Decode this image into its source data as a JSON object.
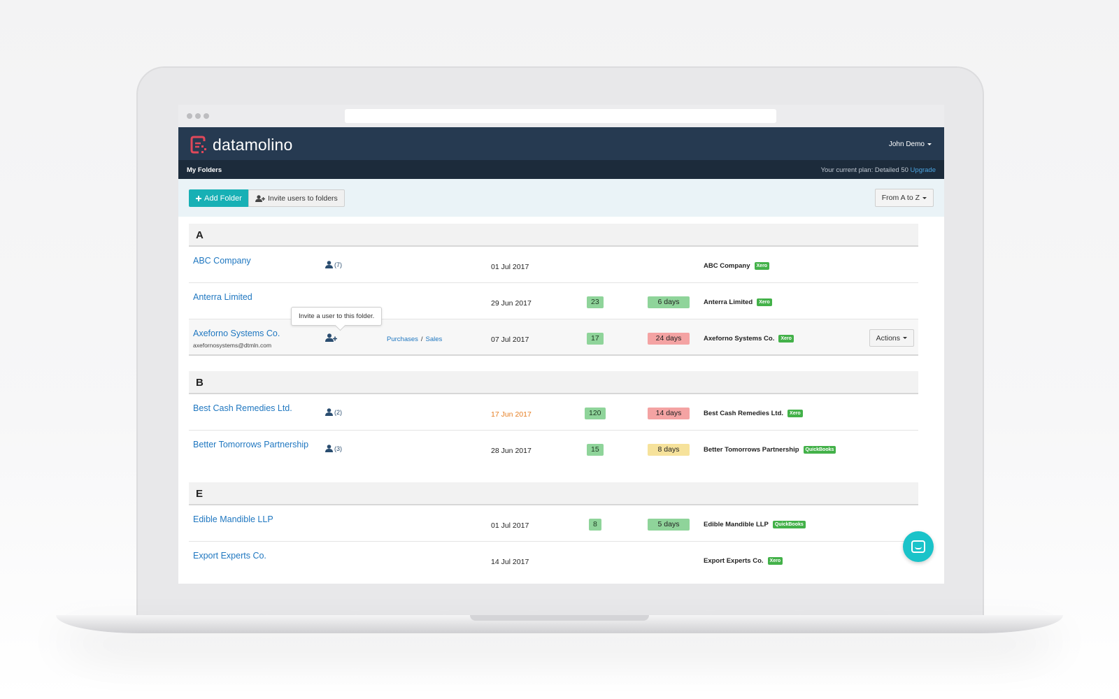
{
  "app": {
    "logo_text": "datamolino",
    "user_name": "John Demo",
    "section_title": "My Folders",
    "plan_text": "Your current plan: Detailed 50",
    "upgrade_label": "Upgrade"
  },
  "toolbar": {
    "add_folder_label": "Add Folder",
    "invite_label": "Invite users to folders",
    "sort_label": "From A to Z"
  },
  "tooltip": "Invite a user to this folder.",
  "actions_label": "Actions",
  "groups": [
    {
      "letter": "A",
      "rows": [
        {
          "name": "ABC Company",
          "users": "(7)",
          "date": "01 Jul 2017",
          "company": "ABC Company",
          "tag": "Xero"
        },
        {
          "name": "Anterra Limited",
          "date": "29 Jun 2017",
          "count": "23",
          "days": "6 days",
          "company": "Anterra Limited",
          "tag": "Xero"
        },
        {
          "name": "Axeforno Systems Co.",
          "email": "axefornosystems@dtmln.com",
          "purchases": "Purchases",
          "sales": "Sales",
          "date": "07 Jul 2017",
          "count": "17",
          "days": "24 days",
          "company": "Axeforno Systems Co.",
          "tag": "Xero"
        }
      ]
    },
    {
      "letter": "B",
      "rows": [
        {
          "name": "Best Cash Remedies Ltd.",
          "users": "(2)",
          "date": "17 Jun 2017",
          "count": "120",
          "days": "14 days",
          "company": "Best Cash Remedies Ltd.",
          "tag": "Xero"
        },
        {
          "name": "Better Tomorrows Partnership",
          "users": "(3)",
          "date": "28 Jun 2017",
          "count": "15",
          "days": "8 days",
          "company": "Better Tomorrows Partnership",
          "tag": "QuickBooks"
        }
      ]
    },
    {
      "letter": "E",
      "rows": [
        {
          "name": "Edible Mandible LLP",
          "date": "01 Jul 2017",
          "count": "8",
          "days": "5 days",
          "company": "Edible Mandible LLP",
          "tag": "QuickBooks"
        },
        {
          "name": "Export Experts Co.",
          "date": "14 Jul 2017",
          "company": "Export Experts Co.",
          "tag": "Xero"
        }
      ]
    }
  ],
  "colors": {
    "header": "#263a51",
    "accent": "#17b0b5",
    "link": "#1f77c0",
    "green": "#8fd49a",
    "red": "#f4a3a3",
    "yellow": "#f6e29b",
    "warn_date": "#e67e22"
  },
  "icons": [
    "user-icon",
    "add-user-icon",
    "plus-icon",
    "caret-down-icon",
    "chat-icon"
  ]
}
